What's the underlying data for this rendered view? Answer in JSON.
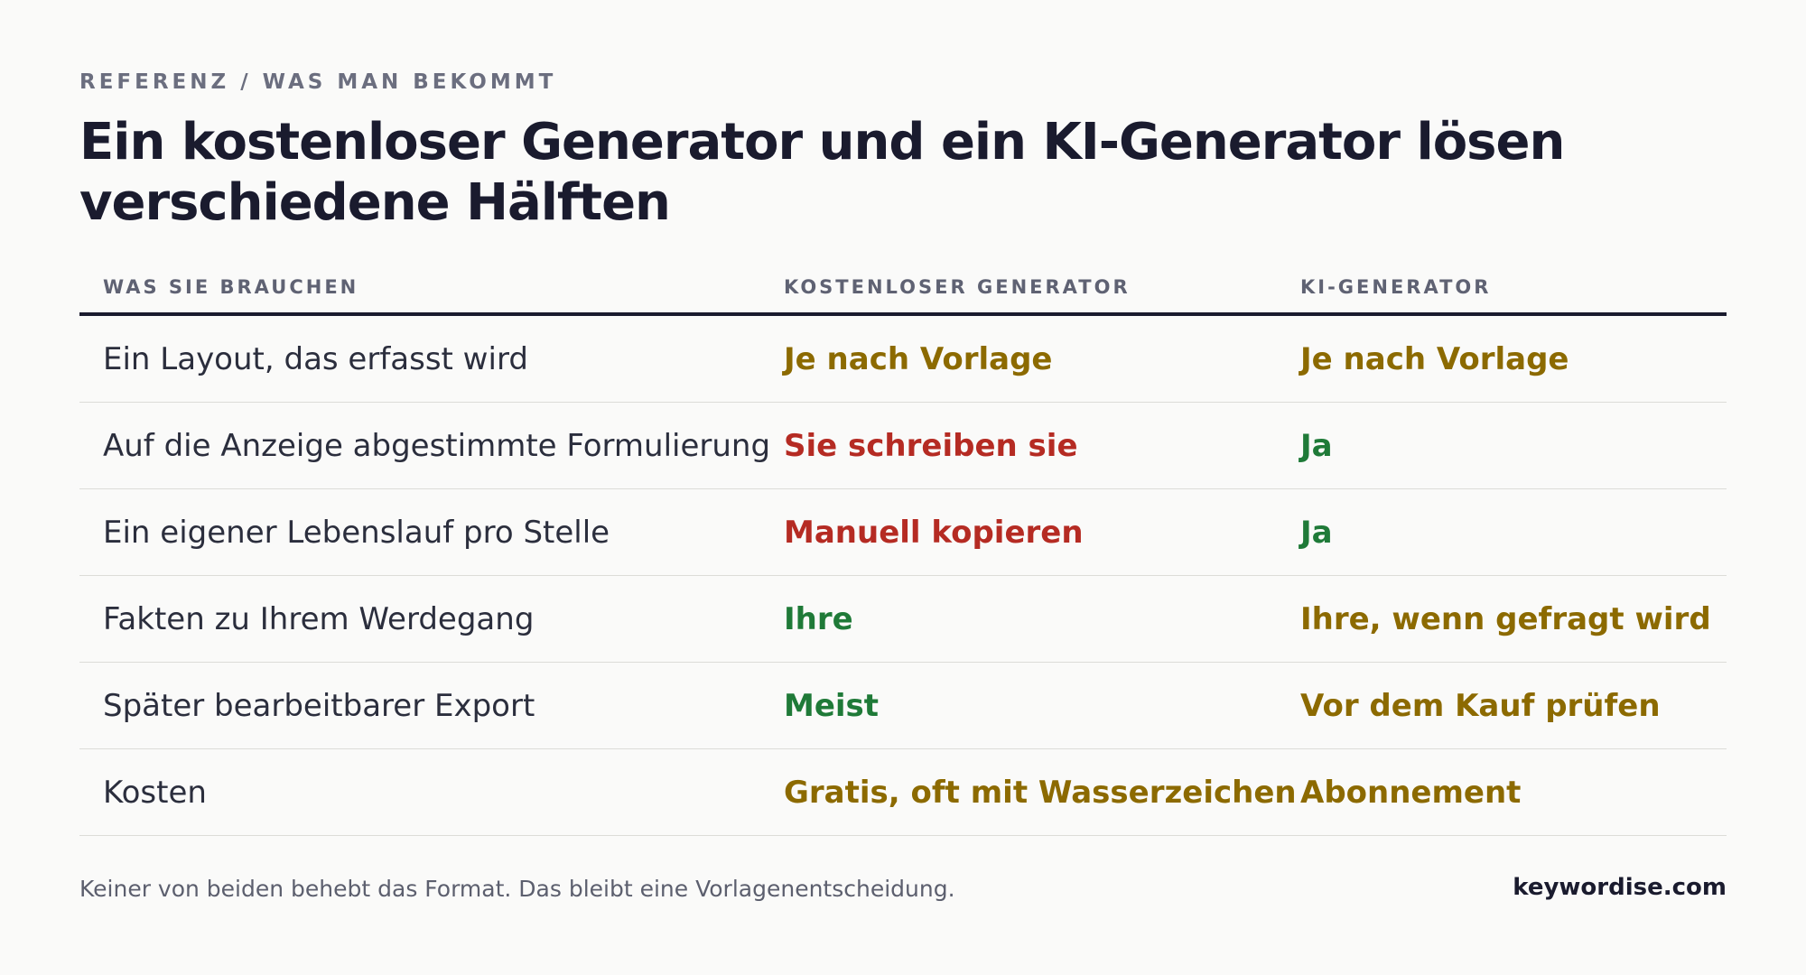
{
  "eyebrow": "REFERENZ / WAS MAN BEKOMMT",
  "title": "Ein kostenloser Generator und ein KI-Generator lösen verschiedene Hälften",
  "colors": {
    "yellow": "#8c6a00",
    "red": "#b52b23",
    "green": "#1f7a38"
  },
  "table": {
    "headers": [
      "WAS SIE BRAUCHEN",
      "KOSTENLOSER GENERATOR",
      "KI-GENERATOR"
    ],
    "rows": [
      {
        "need": "Ein Layout, das erfasst wird",
        "free": {
          "text": "Je nach Vorlage",
          "status": "yellow"
        },
        "ai": {
          "text": "Je nach Vorlage",
          "status": "yellow"
        }
      },
      {
        "need": "Auf die Anzeige abgestimmte Formulierung",
        "free": {
          "text": "Sie schreiben sie",
          "status": "red"
        },
        "ai": {
          "text": "Ja",
          "status": "green"
        }
      },
      {
        "need": "Ein eigener Lebenslauf pro Stelle",
        "free": {
          "text": "Manuell kopieren",
          "status": "red"
        },
        "ai": {
          "text": "Ja",
          "status": "green"
        }
      },
      {
        "need": "Fakten zu Ihrem Werdegang",
        "free": {
          "text": "Ihre",
          "status": "green"
        },
        "ai": {
          "text": "Ihre, wenn gefragt wird",
          "status": "yellow"
        }
      },
      {
        "need": "Später bearbeitbarer Export",
        "free": {
          "text": "Meist",
          "status": "green"
        },
        "ai": {
          "text": "Vor dem Kauf prüfen",
          "status": "yellow"
        }
      },
      {
        "need": "Kosten",
        "free": {
          "text": "Gratis, oft mit Wasserzeichen",
          "status": "yellow"
        },
        "ai": {
          "text": "Abonnement",
          "status": "yellow"
        }
      }
    ]
  },
  "footer": {
    "note": "Keiner von beiden behebt das Format. Das bleibt eine Vorlagenentscheidung.",
    "brand": "keywordise.com"
  }
}
